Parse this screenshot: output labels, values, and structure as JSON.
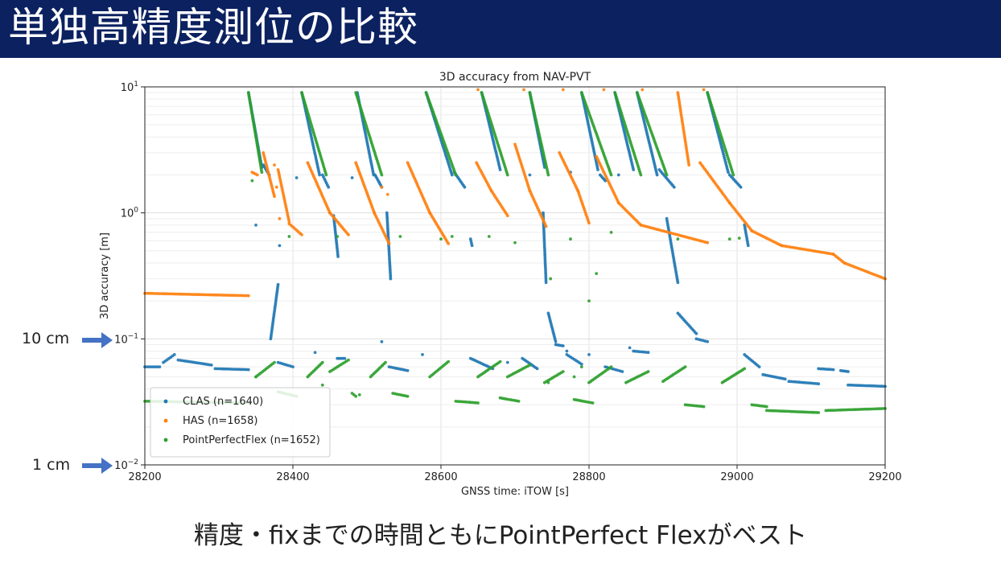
{
  "slide": {
    "title": "単独高精度測位の比較",
    "caption": "精度・fixまでの時間ともにPointPerfect Flexがベスト",
    "annotations": [
      {
        "label": "10 cm",
        "value": 0.1
      },
      {
        "label": "1 cm",
        "value": 0.01
      }
    ]
  },
  "colors": {
    "title_bg": "#0b2160",
    "arrow": "#4472c4",
    "CLAS": "#1f77b4",
    "HAS": "#ff7f0e",
    "PointPerfectFlex": "#2ca02c"
  },
  "chart_data": {
    "type": "scatter",
    "title": "3D accuracy from NAV-PVT",
    "xlabel": "GNSS time: iTOW [s]",
    "ylabel": "3D accuracy [m]",
    "xlim": [
      28200,
      29200
    ],
    "ylim": [
      0.01,
      10
    ],
    "yscale": "log",
    "grid": true,
    "legend_position": "lower-left",
    "x_ticks": [
      {
        "v": 28200,
        "label": "28200"
      },
      {
        "v": 28400,
        "label": "28400"
      },
      {
        "v": 28600,
        "label": "28600"
      },
      {
        "v": 28800,
        "label": "28800"
      },
      {
        "v": 29000,
        "label": "29000"
      },
      {
        "v": 29200,
        "label": "29200"
      }
    ],
    "y_ticks": [
      {
        "v": 10,
        "base": "10",
        "exp": "1"
      },
      {
        "v": 1,
        "base": "10",
        "exp": "0"
      },
      {
        "v": 0.1,
        "base": "10",
        "exp": "−1"
      },
      {
        "v": 0.01,
        "base": "10",
        "exp": "−2"
      }
    ],
    "series": [
      {
        "name": "CLAS (n=1640)",
        "color": "#1f77b4",
        "runs": [
          [
            28200,
            0.06,
            28220,
            0.06
          ],
          [
            28225,
            0.065,
            28240,
            0.075
          ],
          [
            28245,
            0.068,
            28290,
            0.062
          ],
          [
            28295,
            0.058,
            28340,
            0.057
          ],
          [
            28340,
            9,
            28358,
            2.3
          ],
          [
            28360,
            2.4,
            28368,
            2.0
          ],
          [
            28370,
            0.1,
            28380,
            0.27
          ],
          [
            28380,
            0.065,
            28400,
            0.06
          ],
          [
            28412,
            9,
            28436,
            2.0
          ],
          [
            28440,
            2.0,
            28448,
            1.6
          ],
          [
            28455,
            0.95,
            28461,
            0.45
          ],
          [
            28460,
            0.07,
            28470,
            0.07
          ],
          [
            28487,
            9,
            28509,
            2.0
          ],
          [
            28511,
            2.0,
            28520,
            1.6
          ],
          [
            28527,
            1.0,
            28532,
            0.3
          ],
          [
            28530,
            0.06,
            28555,
            0.056
          ],
          [
            28580,
            9,
            28615,
            2.0
          ],
          [
            28618,
            2.1,
            28632,
            1.6
          ],
          [
            28640,
            0.62,
            28642,
            0.55
          ],
          [
            28640,
            0.07,
            28670,
            0.058
          ],
          [
            28655,
            9,
            28680,
            2.2
          ],
          [
            28710,
            0.07,
            28730,
            0.058
          ],
          [
            28720,
            9,
            28740,
            2.3
          ],
          [
            28738,
            1.0,
            28742,
            0.28
          ],
          [
            28745,
            0.16,
            28755,
            0.095
          ],
          [
            28755,
            0.09,
            28765,
            0.088
          ],
          [
            28770,
            0.075,
            28790,
            0.063
          ],
          [
            28790,
            9,
            28812,
            2.2
          ],
          [
            28815,
            2.0,
            28822,
            1.8
          ],
          [
            28822,
            0.06,
            28845,
            0.055
          ],
          [
            28835,
            9,
            28860,
            2.2
          ],
          [
            28860,
            0.08,
            28880,
            0.078
          ],
          [
            28865,
            9,
            28892,
            2.0
          ],
          [
            28895,
            2.2,
            28915,
            1.6
          ],
          [
            28905,
            0.9,
            28920,
            0.28
          ],
          [
            28920,
            0.16,
            28945,
            0.11
          ],
          [
            28945,
            0.1,
            28960,
            0.095
          ],
          [
            28960,
            9,
            28988,
            2.1
          ],
          [
            28990,
            2.0,
            29005,
            1.6
          ],
          [
            29010,
            0.8,
            29015,
            0.55
          ],
          [
            29010,
            0.075,
            29030,
            0.06
          ],
          [
            29035,
            0.052,
            29065,
            0.048
          ],
          [
            29070,
            0.046,
            29110,
            0.044
          ],
          [
            29110,
            0.058,
            29130,
            0.057
          ],
          [
            29140,
            0.056,
            29150,
            0.055
          ],
          [
            29150,
            0.043,
            29200,
            0.042
          ]
        ],
        "scatter": [
          [
            28405,
            1.9
          ],
          [
            28480,
            1.9
          ],
          [
            28382,
            0.55
          ],
          [
            28350,
            0.8
          ],
          [
            28720,
            2.0
          ],
          [
            28775,
            2.1
          ],
          [
            28840,
            2.0
          ],
          [
            28855,
            0.085
          ],
          [
            28770,
            0.08
          ],
          [
            28800,
            0.075
          ],
          [
            28690,
            0.065
          ],
          [
            28575,
            0.075
          ],
          [
            28520,
            0.095
          ],
          [
            28430,
            0.078
          ]
        ]
      },
      {
        "name": "HAS (n=1658)",
        "color": "#ff7f0e",
        "runs": [
          [
            28200,
            0.23,
            28340,
            0.22
          ],
          [
            28345,
            2.1,
            28352,
            2.0
          ],
          [
            28360,
            3.0,
            28375,
            1.35
          ],
          [
            28380,
            2.2,
            28395,
            0.85
          ],
          [
            28395,
            0.82,
            28412,
            0.67
          ],
          [
            28420,
            2.5,
            28450,
            1.0
          ],
          [
            28450,
            1.0,
            28475,
            0.67
          ],
          [
            28485,
            2.5,
            28510,
            1.0
          ],
          [
            28510,
            1.0,
            28530,
            0.57
          ],
          [
            28555,
            2.5,
            28585,
            1.0
          ],
          [
            28585,
            1.0,
            28610,
            0.57
          ],
          [
            28648,
            2.5,
            28668,
            1.5
          ],
          [
            28668,
            1.5,
            28690,
            0.95
          ],
          [
            28700,
            3.5,
            28720,
            1.5
          ],
          [
            28720,
            1.5,
            28742,
            0.78
          ],
          [
            28760,
            3.0,
            28785,
            1.5
          ],
          [
            28785,
            1.5,
            28800,
            0.83
          ],
          [
            28810,
            2.8,
            28840,
            1.2
          ],
          [
            28840,
            1.2,
            28870,
            0.8
          ],
          [
            28870,
            0.8,
            28960,
            0.58
          ],
          [
            28920,
            9,
            28935,
            2.4
          ],
          [
            28950,
            2.5,
            28990,
            1.2
          ],
          [
            28990,
            1.2,
            29020,
            0.72
          ],
          [
            29020,
            0.72,
            29060,
            0.55
          ],
          [
            29060,
            0.55,
            29130,
            0.47
          ],
          [
            29130,
            0.47,
            29145,
            0.4
          ],
          [
            29145,
            0.4,
            29200,
            0.3
          ]
        ],
        "scatter": [
          [
            28375,
            2.4
          ],
          [
            28378,
            1.6
          ],
          [
            28382,
            0.9
          ],
          [
            28650,
            9.5
          ],
          [
            28712,
            9.5
          ],
          [
            28765,
            9.5
          ],
          [
            28820,
            9.5
          ],
          [
            28872,
            9.5
          ],
          [
            28955,
            9.5
          ],
          [
            28520,
            1.6
          ],
          [
            28528,
            1.4
          ]
        ]
      },
      {
        "name": "PointPerfectFlex (n=1652)",
        "color": "#2ca02c",
        "runs": [
          [
            28200,
            0.032,
            28340,
            0.031
          ],
          [
            28340,
            9,
            28358,
            2.1
          ],
          [
            28350,
            0.05,
            28375,
            0.065
          ],
          [
            28380,
            0.038,
            28405,
            0.035
          ],
          [
            28412,
            9,
            28445,
            2.0
          ],
          [
            28420,
            0.05,
            28440,
            0.065
          ],
          [
            28450,
            0.055,
            28475,
            0.068
          ],
          [
            28480,
            0.037,
            28485,
            0.035
          ],
          [
            28485,
            9,
            28520,
            2.0
          ],
          [
            28505,
            0.05,
            28525,
            0.065
          ],
          [
            28535,
            0.037,
            28555,
            0.035
          ],
          [
            28580,
            9,
            28620,
            2.0
          ],
          [
            28585,
            0.05,
            28610,
            0.066
          ],
          [
            28620,
            0.032,
            28650,
            0.031
          ],
          [
            28650,
            0.05,
            28680,
            0.066
          ],
          [
            28680,
            0.034,
            28705,
            0.032
          ],
          [
            28655,
            9,
            28690,
            2.0
          ],
          [
            28690,
            0.05,
            28720,
            0.062
          ],
          [
            28720,
            9,
            28745,
            2.0
          ],
          [
            28740,
            0.045,
            28765,
            0.055
          ],
          [
            28780,
            0.033,
            28805,
            0.031
          ],
          [
            28790,
            9,
            28830,
            2.0
          ],
          [
            28800,
            0.045,
            28830,
            0.06
          ],
          [
            28835,
            9,
            28870,
            2.0
          ],
          [
            28850,
            0.045,
            28880,
            0.055
          ],
          [
            28865,
            9,
            28905,
            2.0
          ],
          [
            28900,
            0.046,
            28930,
            0.06
          ],
          [
            28930,
            0.03,
            28955,
            0.029
          ],
          [
            28960,
            9,
            28995,
            2.0
          ],
          [
            28980,
            0.045,
            29010,
            0.058
          ],
          [
            29020,
            0.03,
            29040,
            0.029
          ],
          [
            29040,
            0.027,
            29110,
            0.026
          ],
          [
            29120,
            0.027,
            29200,
            0.028
          ]
        ],
        "scatter": [
          [
            28345,
            1.8
          ],
          [
            28395,
            0.65
          ],
          [
            28460,
            0.65
          ],
          [
            28545,
            0.65
          ],
          [
            28600,
            0.62
          ],
          [
            28615,
            0.65
          ],
          [
            28665,
            0.65
          ],
          [
            28700,
            0.58
          ],
          [
            28775,
            0.62
          ],
          [
            28830,
            0.7
          ],
          [
            28920,
            0.62
          ],
          [
            28990,
            0.62
          ],
          [
            29003,
            0.63
          ],
          [
            28748,
            0.3
          ],
          [
            28810,
            0.33
          ],
          [
            28800,
            0.2
          ],
          [
            28350,
            0.05
          ],
          [
            28440,
            0.043
          ],
          [
            28490,
            0.036
          ],
          [
            28745,
            0.045
          ],
          [
            28780,
            0.05
          ],
          [
            28790,
            0.06
          ]
        ]
      }
    ]
  }
}
